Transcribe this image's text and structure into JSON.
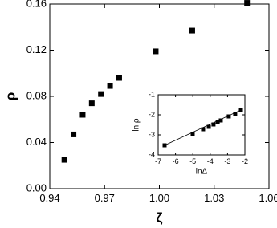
{
  "chart_data": [
    {
      "type": "scatter",
      "x_label": "ζ",
      "y_label": "ρ",
      "x": [
        0.948,
        0.953,
        0.958,
        0.963,
        0.968,
        0.973,
        0.978,
        0.998,
        1.018,
        1.048
      ],
      "values": [
        0.025,
        0.047,
        0.064,
        0.074,
        0.082,
        0.089,
        0.096,
        0.119,
        0.137,
        0.161
      ],
      "color": "#000000",
      "xlim": [
        0.94,
        1.06
      ],
      "xticks": [
        0.94,
        0.97,
        {
          "value": 1,
          "label": "1.00"
        },
        1.03,
        1.06
      ],
      "ylim": [
        0,
        0.16
      ],
      "yticks": [
        {
          "value": 0,
          "label": "0.00"
        },
        0.04,
        0.08,
        0.12,
        0.16
      ]
    },
    {
      "type": "scatter",
      "x_label": "lnΔ",
      "y_label": "ln ρ",
      "x": [
        -6.63,
        -5.01,
        -4.41,
        -4.08,
        -3.81,
        -3.57,
        -3.39,
        -2.93,
        -2.56,
        -2.23
      ],
      "values": [
        -3.52,
        -2.96,
        -2.72,
        -2.6,
        -2.48,
        -2.36,
        -2.28,
        -2.08,
        -1.96,
        -1.76
      ],
      "color": "#000000",
      "fit_line": true,
      "xlim": [
        -7,
        -2
      ],
      "xticks": [
        -7,
        -6,
        -5,
        -4,
        -3,
        -2
      ],
      "ylim": [
        -4,
        -1
      ],
      "yticks": [
        -4,
        -3,
        -2,
        -1
      ]
    }
  ]
}
